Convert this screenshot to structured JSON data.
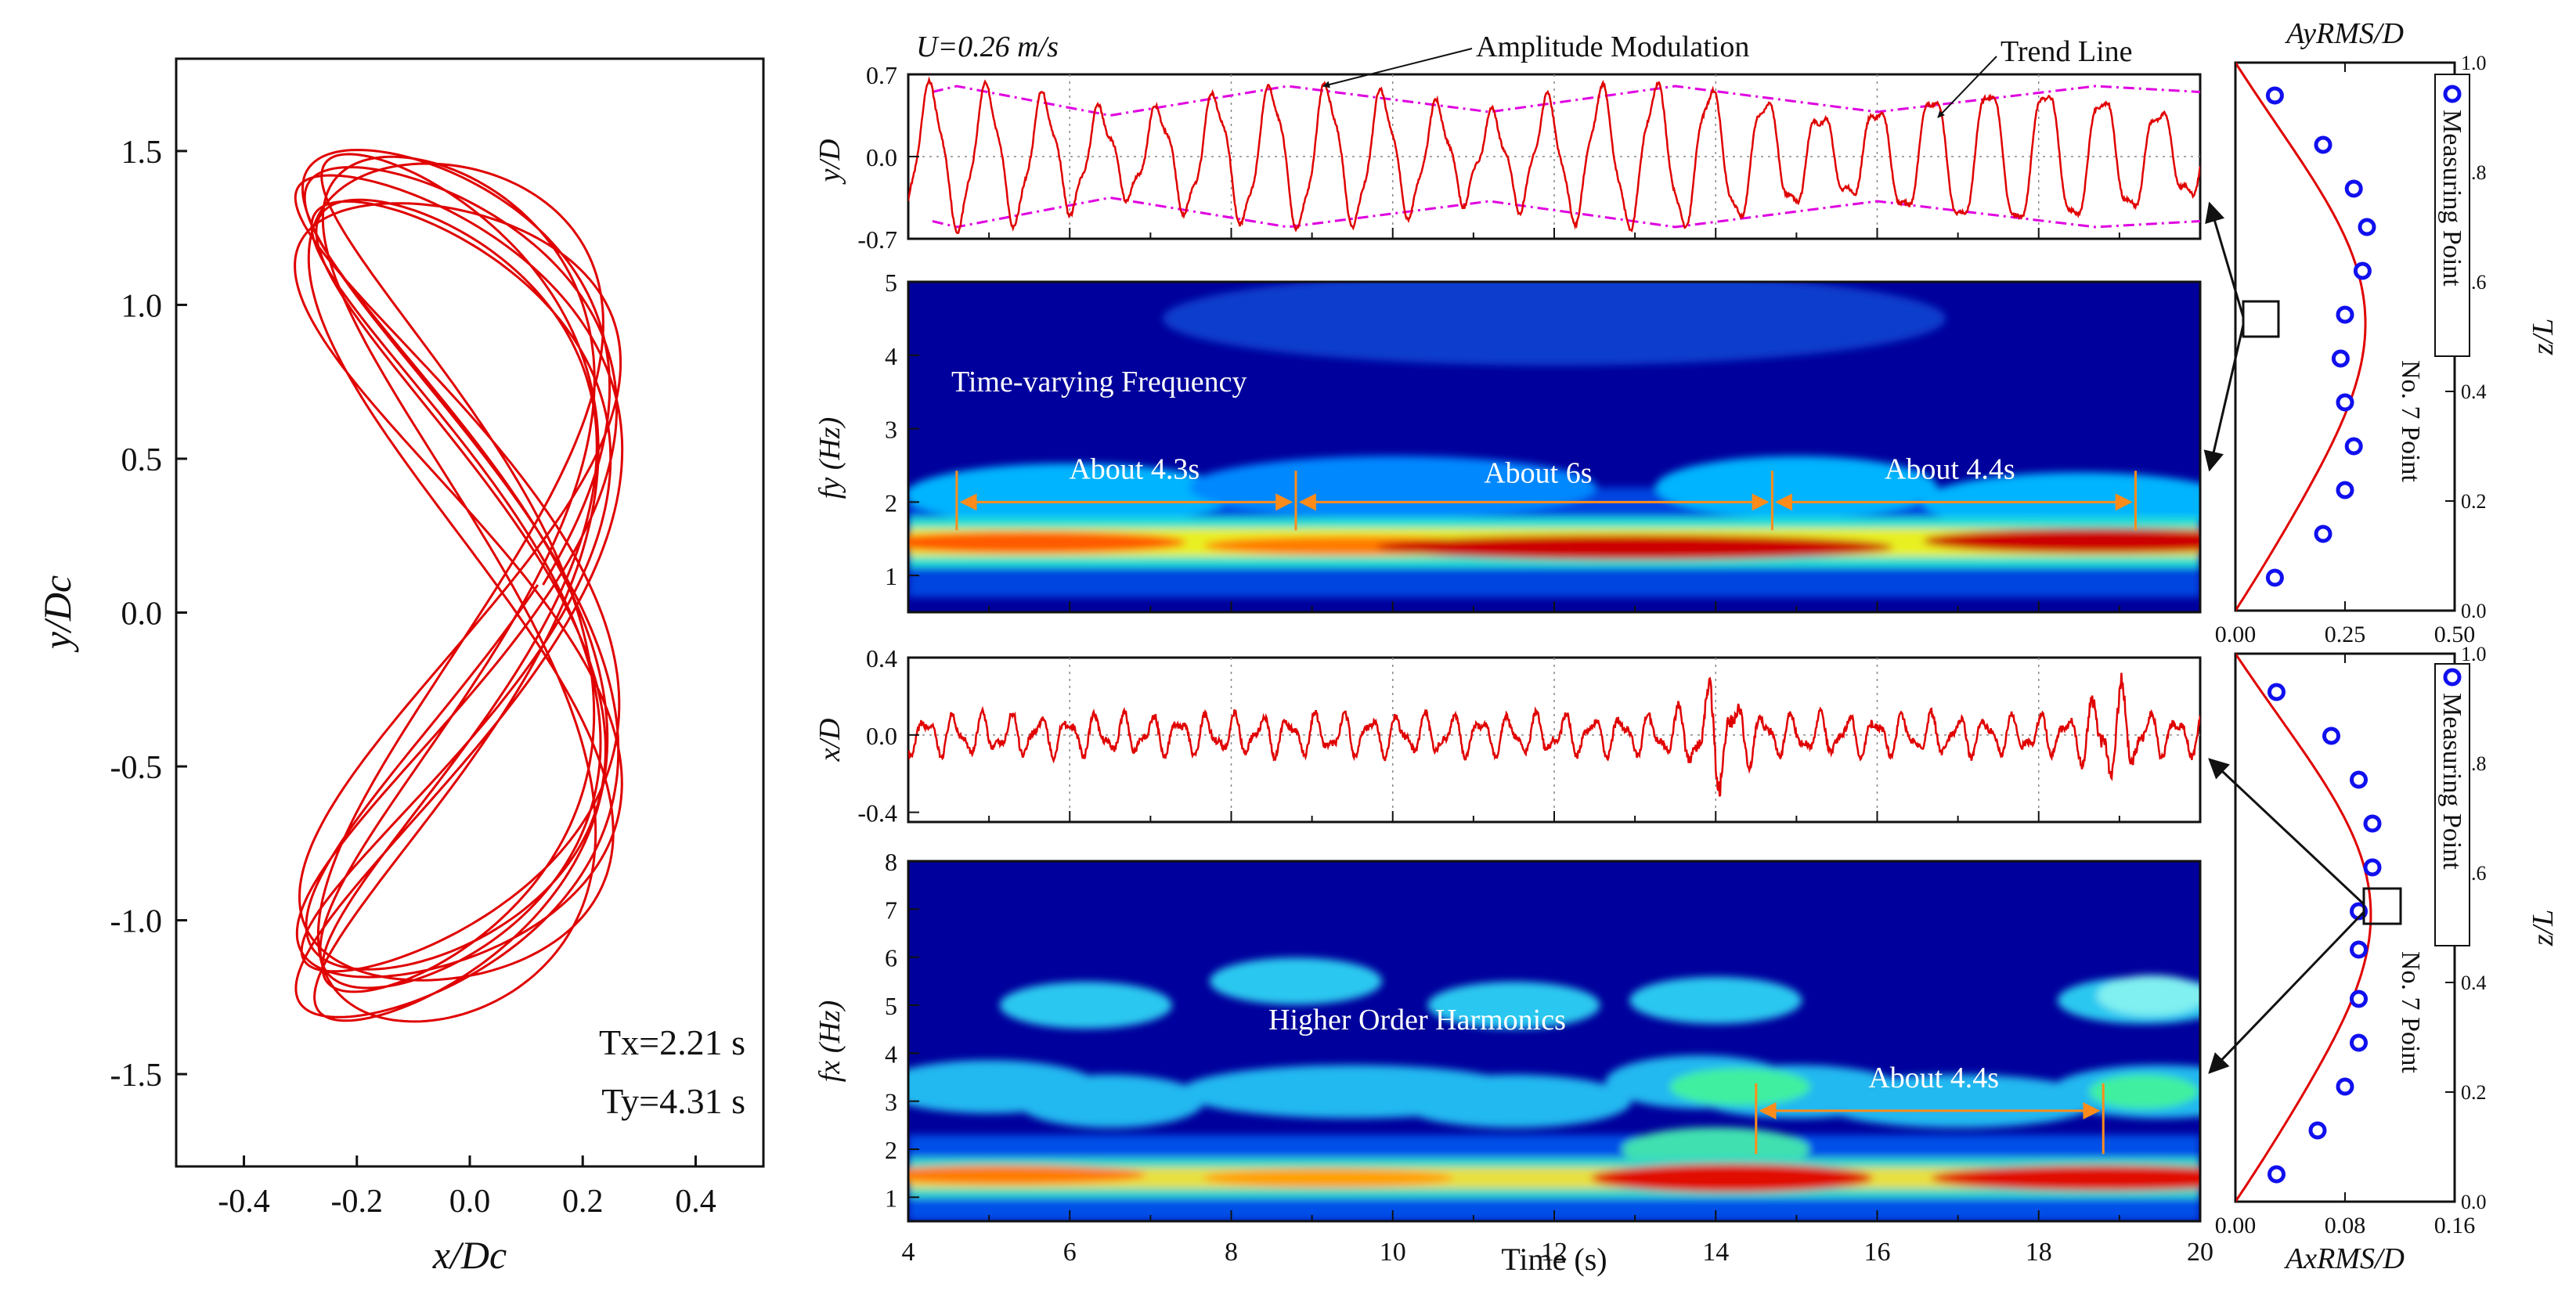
{
  "figure": {
    "velocity_label": "U=0.26 m/s",
    "annotations": {
      "amplitude_modulation": "Amplitude Modulation",
      "trend_line": "Trend Line",
      "time_varying_frequency": "Time-varying Frequency",
      "higher_order_harmonics": "Higher Order Harmonics",
      "about_43": "About 4.3s",
      "about_6": "About 6s",
      "about_44": "About 4.4s",
      "about_44_b": "About 4.4s",
      "measuring_point": "Measuring Point",
      "point_no": "No. 7  Point"
    },
    "colors": {
      "trace": "#e00000",
      "trend": "#e000e0",
      "arrow": "#ff8c1a",
      "marker": "#1010ee",
      "grid": "#888888"
    }
  },
  "chart_data": [
    {
      "id": "orbit",
      "type": "line",
      "title": "",
      "xlabel": "x/Dc",
      "ylabel": "y/Dc",
      "xlim": [
        -0.52,
        0.52
      ],
      "ylim": [
        -1.8,
        1.8
      ],
      "xticks": [
        -0.4,
        -0.2,
        0.0,
        0.2,
        0.4
      ],
      "xtick_labels": [
        "-0.4",
        "-0.2",
        "0.0",
        "0.2",
        "0.4"
      ],
      "yticks": [
        -1.5,
        -1.0,
        -0.5,
        0.0,
        0.5,
        1.0,
        1.5
      ],
      "ytick_labels": [
        "-1.5",
        "-1.0",
        "-0.5",
        "0.0",
        "0.5",
        "1.0",
        "1.5"
      ],
      "shape": "figure-eight orbit, x in [-0.32, 0.28], y in [-1.30, 1.48]",
      "Tx": "Tx=2.21 s",
      "Ty": "Ty=4.31 s"
    },
    {
      "id": "y-displacement",
      "type": "line",
      "ylabel": "y/D",
      "xlim": [
        4,
        20
      ],
      "ylim": [
        -0.7,
        0.7
      ],
      "yticks": [
        -0.7,
        0.0,
        0.7
      ],
      "ytick_labels": [
        "-0.7",
        "0.0",
        "0.7"
      ],
      "dominant_frequency_hz": 1.45,
      "peak_amplitude": 0.6,
      "modulation_period_s": 4.4
    },
    {
      "id": "y-spectrogram",
      "type": "heatmap",
      "ylabel": "fy (Hz)",
      "xlim": [
        4,
        20
      ],
      "ylim": [
        0.5,
        5
      ],
      "yticks": [
        1,
        2,
        3,
        4,
        5
      ],
      "ytick_labels": [
        "1",
        "2",
        "3",
        "4",
        "5"
      ],
      "dominant_band_hz": 1.45,
      "interval_markers_s": [
        4.6,
        8.8,
        14.7,
        19.2
      ],
      "intervals": [
        "About 4.3s",
        "About 6s",
        "About 4.4s"
      ]
    },
    {
      "id": "x-displacement",
      "type": "line",
      "ylabel": "x/D",
      "xlim": [
        4,
        20
      ],
      "ylim": [
        -0.45,
        0.4
      ],
      "yticks": [
        -0.4,
        0.0,
        0.4
      ],
      "ytick_labels": [
        "-0.4",
        "0.0",
        "0.4"
      ],
      "dominant_frequency_hz": 2.9,
      "typical_amplitude": 0.12,
      "peak_amplitude": 0.3
    },
    {
      "id": "x-spectrogram",
      "type": "heatmap",
      "ylabel": "fx (Hz)",
      "xlabel": "Time (s)",
      "xlim": [
        4,
        20
      ],
      "ylim": [
        0.5,
        8
      ],
      "yticks": [
        1,
        2,
        3,
        4,
        5,
        6,
        7,
        8
      ],
      "ytick_labels": [
        "1",
        "2",
        "3",
        "4",
        "5",
        "6",
        "7",
        "8"
      ],
      "xticks": [
        4,
        6,
        8,
        10,
        12,
        14,
        16,
        18,
        20
      ],
      "xtick_labels": [
        "4",
        "6",
        "8",
        "10",
        "12",
        "14",
        "16",
        "18",
        "20"
      ],
      "bands_hz": [
        1.4,
        3.1,
        5.0
      ],
      "interval_markers_s": [
        14.5,
        18.8
      ],
      "intervals": [
        "About 4.4s"
      ]
    },
    {
      "id": "ay-rms-profile",
      "type": "scatter",
      "top_label": "AyRMS/D",
      "ylabel": "z/L",
      "xlim": [
        0,
        0.5
      ],
      "ylim": [
        0,
        1
      ],
      "xticks": [
        0,
        0.25,
        0.5
      ],
      "xtick_labels": [
        "0.00",
        "0.25",
        "0.50"
      ],
      "yticks": [
        0,
        0.2,
        0.4,
        0.6,
        0.8,
        1.0
      ],
      "ytick_labels": [
        "0.0",
        "0.2",
        "0.4",
        "0.6",
        "0.8",
        "1.0"
      ],
      "z": [
        0.94,
        0.85,
        0.77,
        0.7,
        0.62,
        0.54,
        0.46,
        0.38,
        0.3,
        0.22,
        0.14,
        0.06
      ],
      "values": [
        0.09,
        0.2,
        0.27,
        0.3,
        0.29,
        0.25,
        0.24,
        0.25,
        0.27,
        0.25,
        0.2,
        0.09
      ],
      "fit_amplitude": 0.3,
      "highlighted_z": 0.54
    },
    {
      "id": "ax-rms-profile",
      "type": "scatter",
      "xlabel": "AxRMS/D",
      "ylabel": "z/L",
      "xlim": [
        0,
        0.16
      ],
      "ylim": [
        0,
        1
      ],
      "xticks": [
        0,
        0.08,
        0.16
      ],
      "xtick_labels": [
        "0.00",
        "0.08",
        "0.16"
      ],
      "yticks": [
        0,
        0.2,
        0.4,
        0.6,
        0.8,
        1.0
      ],
      "ytick_labels": [
        "0.0",
        "0.2",
        "0.4",
        "0.6",
        "0.8",
        "1.0"
      ],
      "z": [
        0.93,
        0.85,
        0.77,
        0.69,
        0.61,
        0.53,
        0.46,
        0.37,
        0.29,
        0.21,
        0.13,
        0.05
      ],
      "values": [
        0.03,
        0.07,
        0.09,
        0.1,
        0.1,
        0.09,
        0.09,
        0.09,
        0.09,
        0.08,
        0.06,
        0.03
      ],
      "fit_amplitude": 0.1,
      "highlighted_z": 0.53
    }
  ]
}
